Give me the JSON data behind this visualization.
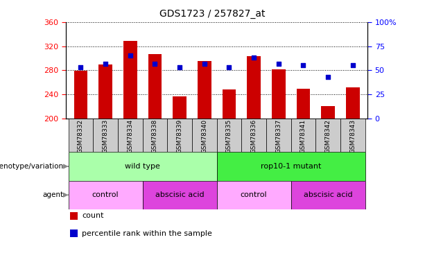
{
  "title": "GDS1723 / 257827_at",
  "samples": [
    "GSM78332",
    "GSM78333",
    "GSM78334",
    "GSM78338",
    "GSM78339",
    "GSM78340",
    "GSM78335",
    "GSM78336",
    "GSM78337",
    "GSM78341",
    "GSM78342",
    "GSM78343"
  ],
  "counts": [
    279,
    290,
    329,
    307,
    236,
    295,
    248,
    303,
    281,
    249,
    220,
    252
  ],
  "percentile_ranks": [
    53,
    57,
    65,
    57,
    53,
    57,
    53,
    63,
    57,
    55,
    43,
    55
  ],
  "ylim_left": [
    200,
    360
  ],
  "ylim_right": [
    0,
    100
  ],
  "yticks_left": [
    200,
    240,
    280,
    320,
    360
  ],
  "yticks_right": [
    0,
    25,
    50,
    75,
    100
  ],
  "bar_color": "#cc0000",
  "dot_color": "#0000cc",
  "grouping_genotype": [
    {
      "label": "wild type",
      "start": 0,
      "end": 6,
      "color": "#aaffaa"
    },
    {
      "label": "rop10-1 mutant",
      "start": 6,
      "end": 12,
      "color": "#44ee44"
    }
  ],
  "grouping_agent": [
    {
      "label": "control",
      "start": 0,
      "end": 3,
      "color": "#ffaaff"
    },
    {
      "label": "abscisic acid",
      "start": 3,
      "end": 6,
      "color": "#dd44dd"
    },
    {
      "label": "control",
      "start": 6,
      "end": 9,
      "color": "#ffaaff"
    },
    {
      "label": "abscisic acid",
      "start": 9,
      "end": 12,
      "color": "#dd44dd"
    }
  ],
  "legend": [
    {
      "label": "count",
      "color": "#cc0000"
    },
    {
      "label": "percentile rank within the sample",
      "color": "#0000cc"
    }
  ],
  "tick_label_bg": "#cccccc",
  "right_axis_top_label": "100%"
}
